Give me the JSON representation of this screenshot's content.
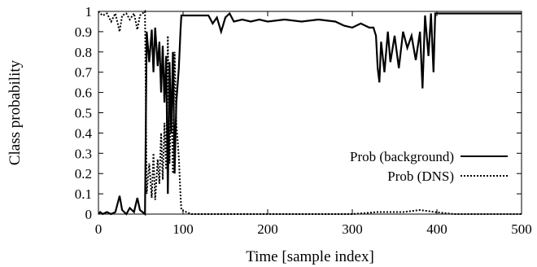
{
  "chart_data": {
    "type": "line",
    "title": "",
    "xlabel": "Time [sample index]",
    "ylabel": "Class probability",
    "xlim": [
      0,
      500
    ],
    "ylim": [
      0,
      1
    ],
    "x_ticks": [
      0,
      100,
      200,
      300,
      400,
      500
    ],
    "y_ticks": [
      0,
      0.1,
      0.2,
      0.3,
      0.4,
      0.5,
      0.6,
      0.7,
      0.8,
      0.9,
      1
    ],
    "grid": false,
    "legend_position": "bottom-right",
    "series": [
      {
        "name": "Prob (background)",
        "style": "solid",
        "color": "#000000",
        "points": [
          [
            0,
            0.0
          ],
          [
            2,
            0.01
          ],
          [
            5,
            0.0
          ],
          [
            10,
            0.01
          ],
          [
            15,
            0.0
          ],
          [
            20,
            0.01
          ],
          [
            25,
            0.09
          ],
          [
            28,
            0.02
          ],
          [
            33,
            0.0
          ],
          [
            37,
            0.03
          ],
          [
            42,
            0.01
          ],
          [
            46,
            0.08
          ],
          [
            49,
            0.02
          ],
          [
            52,
            0.01
          ],
          [
            55,
            0.0
          ],
          [
            57,
            0.9
          ],
          [
            60,
            0.75
          ],
          [
            63,
            0.91
          ],
          [
            65,
            0.7
          ],
          [
            67,
            0.92
          ],
          [
            70,
            0.73
          ],
          [
            72,
            0.85
          ],
          [
            74,
            0.6
          ],
          [
            76,
            0.83
          ],
          [
            78,
            0.55
          ],
          [
            80,
            0.78
          ],
          [
            82,
            0.1
          ],
          [
            84,
            0.75
          ],
          [
            86,
            0.4
          ],
          [
            88,
            0.8
          ],
          [
            90,
            0.2
          ],
          [
            92,
            0.55
          ],
          [
            95,
            0.72
          ],
          [
            97,
            0.91
          ],
          [
            98,
            0.98
          ],
          [
            110,
            0.98
          ],
          [
            130,
            0.98
          ],
          [
            135,
            0.94
          ],
          [
            140,
            0.97
          ],
          [
            145,
            0.9
          ],
          [
            150,
            0.97
          ],
          [
            155,
            0.99
          ],
          [
            160,
            0.95
          ],
          [
            170,
            0.96
          ],
          [
            180,
            0.95
          ],
          [
            190,
            0.96
          ],
          [
            200,
            0.95
          ],
          [
            220,
            0.96
          ],
          [
            240,
            0.95
          ],
          [
            260,
            0.96
          ],
          [
            280,
            0.95
          ],
          [
            290,
            0.93
          ],
          [
            300,
            0.92
          ],
          [
            310,
            0.94
          ],
          [
            320,
            0.92
          ],
          [
            325,
            0.92
          ],
          [
            328,
            0.88
          ],
          [
            330,
            0.72
          ],
          [
            332,
            0.65
          ],
          [
            334,
            0.85
          ],
          [
            338,
            0.7
          ],
          [
            342,
            0.9
          ],
          [
            345,
            0.75
          ],
          [
            350,
            0.88
          ],
          [
            355,
            0.72
          ],
          [
            360,
            0.9
          ],
          [
            365,
            0.82
          ],
          [
            370,
            0.88
          ],
          [
            375,
            0.76
          ],
          [
            380,
            0.9
          ],
          [
            383,
            0.62
          ],
          [
            386,
            0.98
          ],
          [
            390,
            0.78
          ],
          [
            393,
            0.99
          ],
          [
            396,
            0.7
          ],
          [
            398,
            0.99
          ],
          [
            420,
            0.99
          ],
          [
            450,
            0.99
          ],
          [
            480,
            0.99
          ],
          [
            500,
            0.99
          ]
        ]
      },
      {
        "name": "Prob (DNS)",
        "style": "dotted",
        "color": "#000000",
        "points": [
          [
            0,
            1.0
          ],
          [
            2,
            0.99
          ],
          [
            5,
            0.98
          ],
          [
            10,
            0.99
          ],
          [
            15,
            0.95
          ],
          [
            20,
            0.99
          ],
          [
            25,
            0.9
          ],
          [
            28,
            0.98
          ],
          [
            33,
            0.99
          ],
          [
            37,
            0.96
          ],
          [
            42,
            0.99
          ],
          [
            46,
            0.91
          ],
          [
            49,
            0.98
          ],
          [
            52,
            0.99
          ],
          [
            55,
            1.0
          ],
          [
            57,
            0.1
          ],
          [
            60,
            0.25
          ],
          [
            63,
            0.08
          ],
          [
            65,
            0.3
          ],
          [
            67,
            0.07
          ],
          [
            70,
            0.27
          ],
          [
            72,
            0.15
          ],
          [
            74,
            0.4
          ],
          [
            76,
            0.17
          ],
          [
            78,
            0.45
          ],
          [
            80,
            0.22
          ],
          [
            82,
            0.88
          ],
          [
            84,
            0.25
          ],
          [
            86,
            0.6
          ],
          [
            88,
            0.2
          ],
          [
            90,
            0.8
          ],
          [
            92,
            0.45
          ],
          [
            95,
            0.28
          ],
          [
            97,
            0.09
          ],
          [
            98,
            0.02
          ],
          [
            110,
            0.0
          ],
          [
            150,
            0.0
          ],
          [
            200,
            0.0
          ],
          [
            250,
            0.0
          ],
          [
            300,
            0.0
          ],
          [
            330,
            0.01
          ],
          [
            360,
            0.01
          ],
          [
            380,
            0.02
          ],
          [
            398,
            0.01
          ],
          [
            420,
            0.0
          ],
          [
            450,
            0.0
          ],
          [
            500,
            0.0
          ]
        ]
      }
    ]
  }
}
